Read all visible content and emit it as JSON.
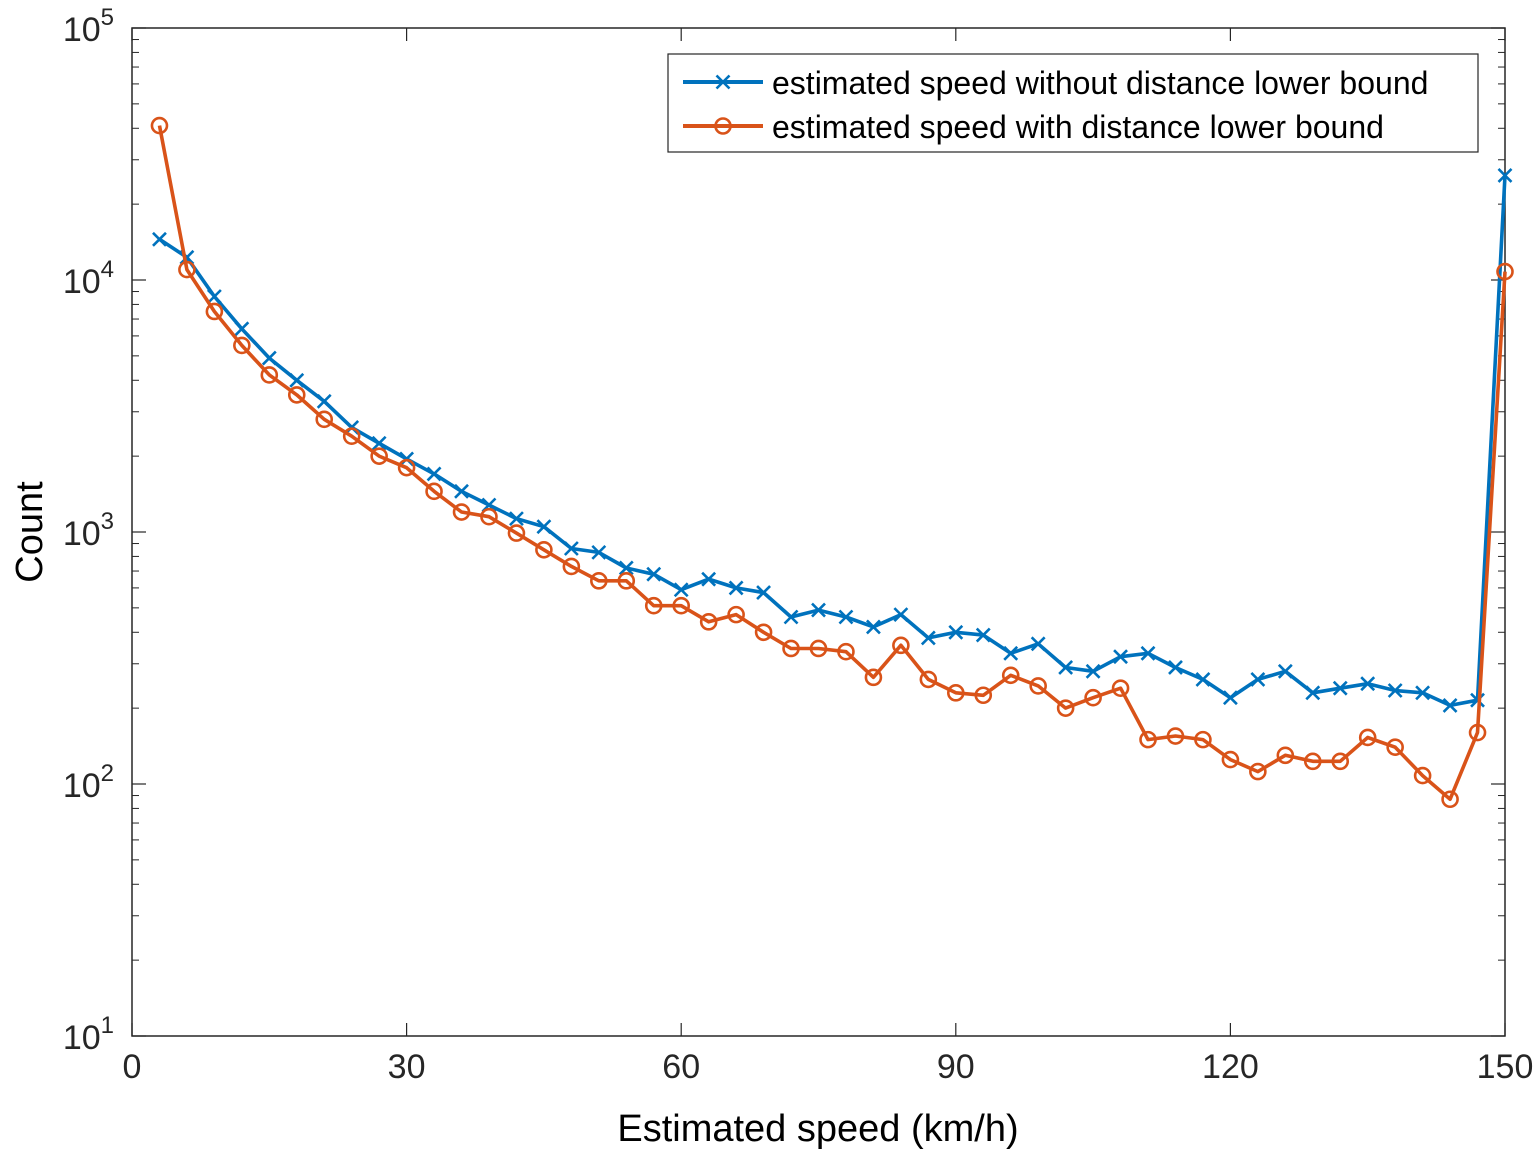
{
  "chart_data": {
    "type": "line",
    "xlabel": "Estimated speed (km/h)",
    "ylabel": "Count",
    "xlim": [
      0,
      150
    ],
    "ylim": [
      10,
      100000
    ],
    "yscale": "log",
    "grid": false,
    "legend_position": "top-right",
    "x_ticks": [
      {
        "value": 0,
        "label": "0"
      },
      {
        "value": 30,
        "label": "30"
      },
      {
        "value": 60,
        "label": "60"
      },
      {
        "value": 90,
        "label": "90"
      },
      {
        "value": 120,
        "label": "120"
      },
      {
        "value": 150,
        "label": "150"
      }
    ],
    "y_ticks": [
      {
        "value": 10,
        "base": "10",
        "exp": "1"
      },
      {
        "value": 100,
        "base": "10",
        "exp": "2"
      },
      {
        "value": 1000,
        "base": "10",
        "exp": "3"
      },
      {
        "value": 10000,
        "base": "10",
        "exp": "4"
      },
      {
        "value": 100000,
        "base": "10",
        "exp": "5"
      }
    ],
    "x": [
      3,
      6,
      9,
      12,
      15,
      18,
      21,
      24,
      27,
      30,
      33,
      36,
      39,
      42,
      45,
      48,
      51,
      54,
      57,
      60,
      63,
      66,
      69,
      72,
      75,
      78,
      81,
      84,
      87,
      90,
      93,
      96,
      99,
      102,
      105,
      108,
      111,
      114,
      117,
      120,
      123,
      126,
      129,
      132,
      135,
      138,
      141,
      144,
      147,
      150
    ],
    "series": [
      {
        "name": "estimated speed without distance lower bound",
        "color": "#0072BD",
        "marker": "x",
        "values": [
          14500,
          12300,
          8600,
          6400,
          4900,
          4000,
          3300,
          2600,
          2250,
          1950,
          1700,
          1450,
          1280,
          1130,
          1050,
          860,
          830,
          720,
          680,
          590,
          650,
          600,
          575,
          460,
          490,
          460,
          420,
          470,
          380,
          400,
          390,
          330,
          360,
          290,
          280,
          320,
          330,
          290,
          260,
          220,
          260,
          280,
          230,
          240,
          250,
          235,
          230,
          205,
          215,
          26000
        ]
      },
      {
        "name": "estimated speed with distance lower bound",
        "color": "#D95319",
        "marker": "o",
        "values": [
          41000,
          11000,
          7500,
          5500,
          4200,
          3500,
          2800,
          2400,
          2000,
          1800,
          1450,
          1200,
          1150,
          990,
          850,
          730,
          640,
          640,
          510,
          510,
          440,
          470,
          400,
          345,
          345,
          335,
          265,
          355,
          260,
          230,
          225,
          270,
          245,
          200,
          220,
          240,
          150,
          155,
          150,
          125,
          112,
          130,
          123,
          123,
          153,
          140,
          108,
          87,
          160,
          10800
        ]
      }
    ]
  }
}
